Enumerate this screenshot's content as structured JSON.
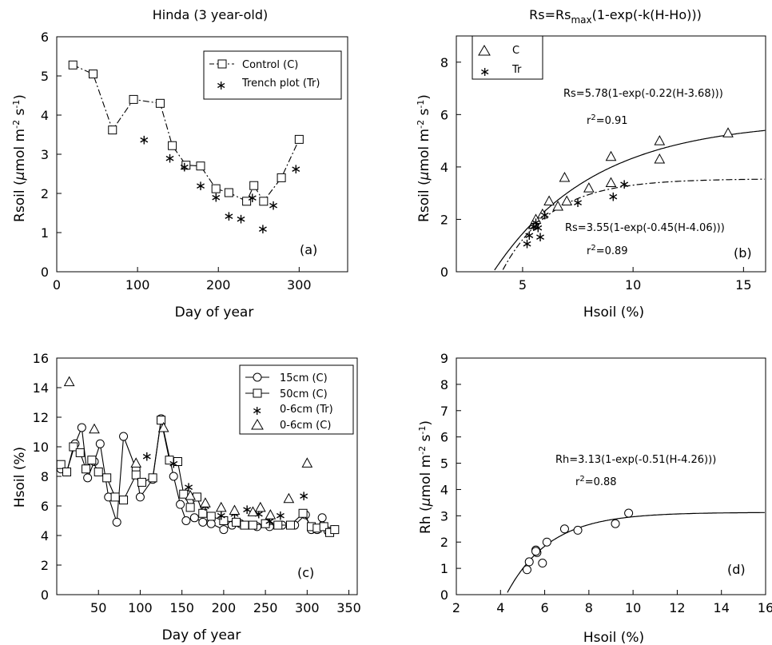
{
  "chart_data": [
    {
      "panel": "a",
      "type": "scatter",
      "title": "Hinda (3 year-old)",
      "xlabel": "Day of year",
      "ylabel": "Rsoil (μmol m-2 s-1)",
      "panel_label": "(a)",
      "xlim": [
        0,
        360
      ],
      "ylim": [
        0,
        6
      ],
      "xticks": [
        0,
        100,
        200,
        300
      ],
      "yticks": [
        0,
        1,
        2,
        3,
        4,
        5,
        6
      ],
      "legend": {
        "position": "top-right",
        "entries": [
          "Control (C)",
          "Trench plot (Tr)"
        ]
      },
      "series": [
        {
          "name": "Control (C)",
          "marker": "square",
          "line": "dashdot",
          "points": [
            [
              20,
              5.28
            ],
            [
              45,
              5.05
            ],
            [
              69,
              3.62
            ],
            [
              95,
              4.4
            ],
            [
              128,
              4.3
            ],
            [
              143,
              3.22
            ],
            [
              160,
              2.72
            ],
            [
              178,
              2.7
            ],
            [
              197,
              2.12
            ],
            [
              213,
              2.02
            ],
            [
              235,
              1.8
            ],
            [
              244,
              2.2
            ],
            [
              256,
              1.8
            ],
            [
              278,
              2.4
            ],
            [
              300,
              3.38
            ]
          ]
        },
        {
          "name": "Trench plot (Tr)",
          "marker": "star",
          "points": [
            [
              108,
              3.42
            ],
            [
              140,
              2.95
            ],
            [
              158,
              2.72
            ],
            [
              178,
              2.25
            ],
            [
              197,
              1.95
            ],
            [
              213,
              1.47
            ],
            [
              228,
              1.4
            ],
            [
              242,
              1.94
            ],
            [
              255,
              1.14
            ],
            [
              268,
              1.75
            ],
            [
              296,
              2.67
            ]
          ]
        }
      ]
    },
    {
      "panel": "b",
      "type": "scatter",
      "title": "Rs=Rsmax(1-exp(-k(H-Ho)))",
      "title_main": "Rs=Rs",
      "title_sub": "max",
      "title_tail": "(1-exp(-k(H-Ho)))",
      "xlabel": "Hsoil (%)",
      "ylabel": "Rsoil (μmol m-2 s-1)",
      "panel_label": "(b)",
      "xlim": [
        2,
        16
      ],
      "ylim": [
        0,
        9
      ],
      "xticks": [
        5,
        10,
        15
      ],
      "yticks": [
        0,
        2,
        4,
        6,
        8
      ],
      "legend": {
        "position": "top-left",
        "entries": [
          "C",
          "Tr"
        ]
      },
      "annotations": {
        "fit_c": "Rs=5.78(1-exp(-0.22(H-3.68)))",
        "r2_c": "=0.91",
        "fit_tr": "Rs=3.55(1-exp(-0.45(H-4.06)))",
        "r2_tr": "=0.89"
      },
      "series": [
        {
          "name": "C",
          "marker": "triangle",
          "points": [
            [
              5.5,
              1.8
            ],
            [
              5.6,
              2.0
            ],
            [
              5.9,
              2.2
            ],
            [
              6.2,
              2.7
            ],
            [
              6.6,
              2.5
            ],
            [
              6.9,
              3.6
            ],
            [
              7.0,
              2.7
            ],
            [
              8.0,
              3.2
            ],
            [
              9.0,
              4.4
            ],
            [
              9.0,
              3.4
            ],
            [
              11.2,
              5.0
            ],
            [
              11.2,
              4.3
            ],
            [
              14.3,
              5.3
            ]
          ]
        },
        {
          "name": "Tr",
          "marker": "star",
          "points": [
            [
              5.2,
              1.14
            ],
            [
              5.3,
              1.47
            ],
            [
              5.5,
              1.8
            ],
            [
              5.6,
              1.95
            ],
            [
              5.7,
              1.75
            ],
            [
              5.8,
              1.4
            ],
            [
              6.0,
              2.25
            ],
            [
              7.5,
              2.72
            ],
            [
              9.1,
              2.95
            ],
            [
              9.6,
              3.42
            ]
          ]
        }
      ],
      "curves": [
        {
          "name": "fit C",
          "style": "solid",
          "a": 5.78,
          "k": 0.22,
          "h0": 3.68
        },
        {
          "name": "fit Tr",
          "style": "dashdot",
          "a": 3.55,
          "k": 0.45,
          "h0": 4.06
        }
      ]
    },
    {
      "panel": "c",
      "type": "line",
      "xlabel": "Day of year",
      "ylabel": "Hsoil (%)",
      "panel_label": "(c)",
      "xlim": [
        0,
        360
      ],
      "ylim": [
        0,
        16
      ],
      "xticks": [
        50,
        100,
        150,
        200,
        250,
        300,
        350
      ],
      "yticks": [
        0,
        2,
        4,
        6,
        8,
        10,
        12,
        14,
        16
      ],
      "legend": {
        "position": "top-right",
        "entries": [
          "15cm (C)",
          "50cm (C)",
          "0-6cm (Tr)",
          "0-6cm (C)"
        ]
      },
      "series": [
        {
          "name": "15cm (C)",
          "marker": "circle",
          "line": "solid",
          "points": [
            [
              5,
              8.5
            ],
            [
              12,
              8.3
            ],
            [
              22,
              10.2
            ],
            [
              30,
              11.3
            ],
            [
              37,
              7.9
            ],
            [
              45,
              9.0
            ],
            [
              52,
              10.2
            ],
            [
              62,
              6.6
            ],
            [
              72,
              4.9
            ],
            [
              80,
              10.7
            ],
            [
              95,
              8.5
            ],
            [
              100,
              6.6
            ],
            [
              115,
              7.8
            ],
            [
              125,
              11.9
            ],
            [
              140,
              8.0
            ],
            [
              148,
              6.1
            ],
            [
              155,
              5.0
            ],
            [
              165,
              5.2
            ],
            [
              175,
              4.9
            ],
            [
              185,
              4.8
            ],
            [
              200,
              4.4
            ],
            [
              210,
              4.7
            ],
            [
              220,
              4.8
            ],
            [
              240,
              4.6
            ],
            [
              255,
              4.6
            ],
            [
              270,
              4.7
            ],
            [
              285,
              4.7
            ],
            [
              298,
              5.4
            ],
            [
              305,
              4.4
            ],
            [
              312,
              4.4
            ],
            [
              318,
              5.2
            ],
            [
              325,
              4.3
            ],
            [
              332,
              4.4
            ]
          ]
        },
        {
          "name": "50cm (C)",
          "marker": "square",
          "line": "solid",
          "points": [
            [
              5,
              8.8
            ],
            [
              12,
              8.3
            ],
            [
              20,
              10.0
            ],
            [
              28,
              9.6
            ],
            [
              35,
              8.5
            ],
            [
              42,
              9.1
            ],
            [
              50,
              8.3
            ],
            [
              60,
              7.9
            ],
            [
              70,
              6.6
            ],
            [
              80,
              6.4
            ],
            [
              95,
              8.1
            ],
            [
              102,
              7.6
            ],
            [
              115,
              7.9
            ],
            [
              125,
              11.8
            ],
            [
              135,
              9.1
            ],
            [
              145,
              9.0
            ],
            [
              152,
              6.8
            ],
            [
              160,
              5.9
            ],
            [
              168,
              6.6
            ],
            [
              175,
              5.5
            ],
            [
              185,
              5.3
            ],
            [
              200,
              5.0
            ],
            [
              215,
              4.9
            ],
            [
              225,
              4.7
            ],
            [
              235,
              4.7
            ],
            [
              250,
              4.8
            ],
            [
              265,
              4.7
            ],
            [
              280,
              4.7
            ],
            [
              295,
              5.5
            ],
            [
              305,
              4.6
            ],
            [
              312,
              4.5
            ],
            [
              320,
              4.6
            ],
            [
              327,
              4.2
            ],
            [
              333,
              4.4
            ]
          ]
        },
        {
          "name": "0-6cm (Tr)",
          "marker": "star",
          "points": [
            [
              108,
              9.5
            ],
            [
              140,
              9.0
            ],
            [
              158,
              7.4
            ],
            [
              178,
              6.1
            ],
            [
              197,
              5.5
            ],
            [
              213,
              5.6
            ],
            [
              228,
              5.9
            ],
            [
              242,
              5.6
            ],
            [
              255,
              5.1
            ],
            [
              268,
              5.5
            ],
            [
              296,
              6.8
            ]
          ]
        },
        {
          "name": "0-6cm (C)",
          "marker": "triangle",
          "points": [
            [
              15,
              14.4
            ],
            [
              45,
              11.2
            ],
            [
              95,
              8.9
            ],
            [
              128,
              11.3
            ],
            [
              160,
              6.7
            ],
            [
              178,
              6.2
            ],
            [
              197,
              5.9
            ],
            [
              213,
              5.7
            ],
            [
              235,
              5.6
            ],
            [
              244,
              5.9
            ],
            [
              256,
              5.4
            ],
            [
              278,
              6.5
            ],
            [
              300,
              8.9
            ]
          ]
        }
      ]
    },
    {
      "panel": "d",
      "type": "scatter",
      "xlabel": "Hsoil (%)",
      "ylabel": "Rh (μmol m-2 s-1)",
      "panel_label": "(d)",
      "xlim": [
        2,
        16
      ],
      "ylim": [
        0,
        9
      ],
      "xticks": [
        2,
        4,
        6,
        8,
        10,
        12,
        14,
        16
      ],
      "yticks": [
        0,
        1,
        2,
        3,
        4,
        5,
        6,
        7,
        8,
        9
      ],
      "annotations": {
        "fit": "Rh=3.13(1-exp(-0.51(H-4.26)))",
        "r2": "r2=0.88"
      },
      "series": [
        {
          "name": "Rh",
          "marker": "circle",
          "points": [
            [
              5.2,
              0.95
            ],
            [
              5.3,
              1.25
            ],
            [
              5.6,
              1.7
            ],
            [
              5.65,
              1.6
            ],
            [
              5.6,
              1.65
            ],
            [
              5.9,
              1.2
            ],
            [
              6.1,
              2.0
            ],
            [
              6.9,
              2.5
            ],
            [
              7.5,
              2.45
            ],
            [
              9.2,
              2.7
            ],
            [
              9.8,
              3.1
            ]
          ]
        }
      ],
      "curves": [
        {
          "name": "fit",
          "style": "solid",
          "a": 3.13,
          "k": 0.51,
          "h0": 4.26
        }
      ]
    }
  ]
}
